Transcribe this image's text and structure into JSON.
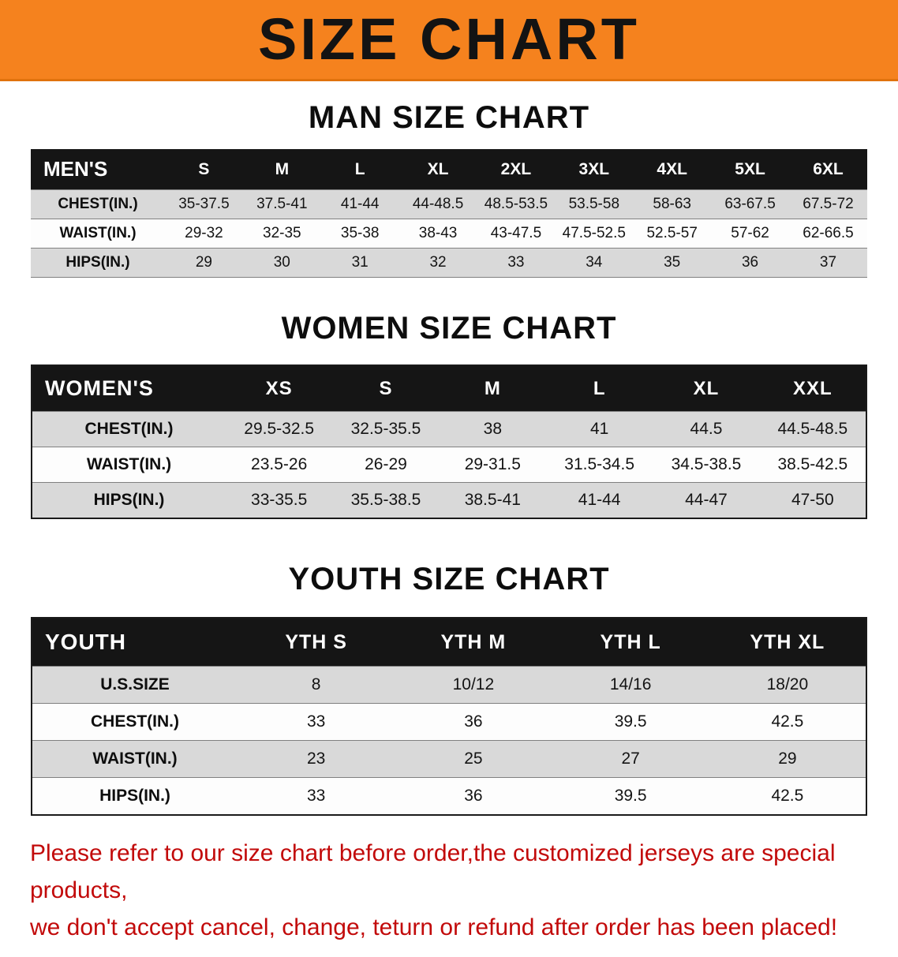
{
  "banner": {
    "title": "SIZE CHART",
    "bg_color": "#f5821e"
  },
  "sections": [
    {
      "id": "men",
      "heading": "MAN SIZE CHART",
      "table": {
        "header": [
          "MEN'S",
          "S",
          "M",
          "L",
          "XL",
          "2XL",
          "3XL",
          "4XL",
          "5XL",
          "6XL"
        ],
        "rows": [
          [
            "CHEST(IN.)",
            "35-37.5",
            "37.5-41",
            "41-44",
            "44-48.5",
            "48.5-53.5",
            "53.5-58",
            "58-63",
            "63-67.5",
            "67.5-72"
          ],
          [
            "WAIST(IN.)",
            "29-32",
            "32-35",
            "35-38",
            "38-43",
            "43-47.5",
            "47.5-52.5",
            "52.5-57",
            "57-62",
            "62-66.5"
          ],
          [
            "HIPS(IN.)",
            "29",
            "30",
            "31",
            "32",
            "33",
            "34",
            "35",
            "36",
            "37"
          ]
        ]
      }
    },
    {
      "id": "women",
      "heading": "WOMEN SIZE CHART",
      "table": {
        "header": [
          "WOMEN'S",
          "XS",
          "S",
          "M",
          "L",
          "XL",
          "XXL"
        ],
        "rows": [
          [
            "CHEST(IN.)",
            "29.5-32.5",
            "32.5-35.5",
            "38",
            "41",
            "44.5",
            "44.5-48.5"
          ],
          [
            "WAIST(IN.)",
            "23.5-26",
            "26-29",
            "29-31.5",
            "31.5-34.5",
            "34.5-38.5",
            "38.5-42.5"
          ],
          [
            "HIPS(IN.)",
            "33-35.5",
            "35.5-38.5",
            "38.5-41",
            "41-44",
            "44-47",
            "47-50"
          ]
        ]
      }
    },
    {
      "id": "youth",
      "heading": "YOUTH SIZE CHART",
      "table": {
        "header": [
          "YOUTH",
          "YTH S",
          "YTH M",
          "YTH L",
          "YTH XL"
        ],
        "rows": [
          [
            "U.S.SIZE",
            "8",
            "10/12",
            "14/16",
            "18/20"
          ],
          [
            "CHEST(IN.)",
            "33",
            "36",
            "39.5",
            "42.5"
          ],
          [
            "WAIST(IN.)",
            "23",
            "25",
            "27",
            "29"
          ],
          [
            "HIPS(IN.)",
            "33",
            "36",
            "39.5",
            "42.5"
          ]
        ]
      }
    }
  ],
  "disclaimer": {
    "line1": "Please refer to our size chart before order,the customized jerseys are special products,",
    "line2": "we don't accept cancel, change, teturn or refund after order has been placed!",
    "color": "#c20a0a"
  },
  "chart_data": [
    {
      "type": "table",
      "title": "MAN SIZE CHART",
      "columns": [
        "MEN'S",
        "S",
        "M",
        "L",
        "XL",
        "2XL",
        "3XL",
        "4XL",
        "5XL",
        "6XL"
      ],
      "rows": [
        [
          "CHEST(IN.)",
          "35-37.5",
          "37.5-41",
          "41-44",
          "44-48.5",
          "48.5-53.5",
          "53.5-58",
          "58-63",
          "63-67.5",
          "67.5-72"
        ],
        [
          "WAIST(IN.)",
          "29-32",
          "32-35",
          "35-38",
          "38-43",
          "43-47.5",
          "47.5-52.5",
          "52.5-57",
          "57-62",
          "62-66.5"
        ],
        [
          "HIPS(IN.)",
          "29",
          "30",
          "31",
          "32",
          "33",
          "34",
          "35",
          "36",
          "37"
        ]
      ]
    },
    {
      "type": "table",
      "title": "WOMEN SIZE CHART",
      "columns": [
        "WOMEN'S",
        "XS",
        "S",
        "M",
        "L",
        "XL",
        "XXL"
      ],
      "rows": [
        [
          "CHEST(IN.)",
          "29.5-32.5",
          "32.5-35.5",
          "38",
          "41",
          "44.5",
          "44.5-48.5"
        ],
        [
          "WAIST(IN.)",
          "23.5-26",
          "26-29",
          "29-31.5",
          "31.5-34.5",
          "34.5-38.5",
          "38.5-42.5"
        ],
        [
          "HIPS(IN.)",
          "33-35.5",
          "35.5-38.5",
          "38.5-41",
          "41-44",
          "44-47",
          "47-50"
        ]
      ]
    },
    {
      "type": "table",
      "title": "YOUTH SIZE CHART",
      "columns": [
        "YOUTH",
        "YTH S",
        "YTH M",
        "YTH L",
        "YTH XL"
      ],
      "rows": [
        [
          "U.S.SIZE",
          "8",
          "10/12",
          "14/16",
          "18/20"
        ],
        [
          "CHEST(IN.)",
          "33",
          "36",
          "39.5",
          "42.5"
        ],
        [
          "WAIST(IN.)",
          "23",
          "25",
          "27",
          "29"
        ],
        [
          "HIPS(IN.)",
          "33",
          "36",
          "39.5",
          "42.5"
        ]
      ]
    }
  ]
}
